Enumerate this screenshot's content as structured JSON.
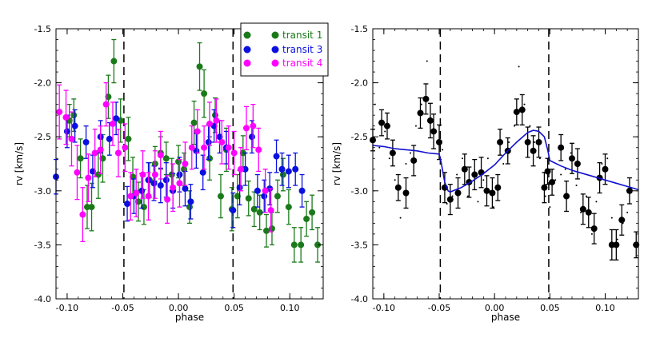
{
  "chart_data": [
    {
      "type": "scatter",
      "panel": "left",
      "xlabel": "phase",
      "ylabel": "rv [km/s]",
      "xlim": [
        -0.11,
        0.13
      ],
      "ylim": [
        -4.0,
        -1.5
      ],
      "xticks": [
        -0.1,
        -0.05,
        0.0,
        0.05,
        0.1
      ],
      "xtick_labels": [
        "-0.10",
        "-0.05",
        "0.00",
        "0.05",
        "0.10"
      ],
      "yticks": [
        -1.5,
        -2.0,
        -2.5,
        -3.0,
        -3.5,
        -4.0
      ],
      "ytick_labels": [
        "-1.5",
        "-2.0",
        "-2.5",
        "-3.0",
        "-3.5",
        "-4.0"
      ],
      "vlines": [
        -0.049,
        0.049
      ],
      "legend": {
        "position": "top-right",
        "entries": [
          "transit 1",
          "transit 3",
          "transit 4"
        ]
      },
      "series": [
        {
          "name": "transit 1",
          "color": "#1a7a1a",
          "x": [
            -0.098,
            -0.094,
            -0.088,
            -0.082,
            -0.078,
            -0.072,
            -0.068,
            -0.063,
            -0.058,
            -0.052,
            -0.045,
            -0.041,
            -0.036,
            -0.031,
            -0.026,
            -0.021,
            -0.016,
            -0.011,
            -0.006,
            0.0,
            0.005,
            0.01,
            0.014,
            0.019,
            0.023,
            0.028,
            0.033,
            0.038,
            0.043,
            0.048,
            0.053,
            0.058,
            0.063,
            0.068,
            0.073,
            0.079,
            0.084,
            0.089,
            0.094,
            0.099,
            0.104,
            0.11,
            0.115,
            0.12,
            0.125
          ],
          "y": [
            -2.35,
            -2.3,
            -2.7,
            -3.15,
            -3.15,
            -2.85,
            -2.7,
            -2.13,
            -1.8,
            -2.35,
            -2.52,
            -2.87,
            -3.1,
            -3.15,
            -2.9,
            -2.75,
            -2.65,
            -2.7,
            -2.85,
            -2.73,
            -2.8,
            -3.15,
            -2.37,
            -1.85,
            -2.1,
            -2.7,
            -2.3,
            -3.05,
            -2.62,
            -3.17,
            -3.05,
            -2.65,
            -3.07,
            -3.17,
            -3.2,
            -3.37,
            -3.35,
            -3.05,
            -2.85,
            -3.15,
            -3.5,
            -3.5,
            -3.26,
            -3.2,
            -3.5
          ],
          "err": [
            0.15,
            0.15,
            0.18,
            0.2,
            0.22,
            0.22,
            0.22,
            0.2,
            0.2,
            0.2,
            0.2,
            0.18,
            0.18,
            0.16,
            0.16,
            0.16,
            0.15,
            0.15,
            0.15,
            0.15,
            0.15,
            0.15,
            0.2,
            0.22,
            0.22,
            0.2,
            0.16,
            0.2,
            0.2,
            0.2,
            0.2,
            0.16,
            0.16,
            0.16,
            0.16,
            0.15,
            0.15,
            0.15,
            0.15,
            0.16,
            0.16,
            0.16,
            0.16,
            0.16,
            0.16
          ]
        },
        {
          "name": "transit 3",
          "color": "#0a10e0",
          "x": [
            -0.11,
            -0.1,
            -0.093,
            -0.083,
            -0.077,
            -0.07,
            -0.062,
            -0.056,
            -0.046,
            -0.04,
            -0.033,
            -0.027,
            -0.022,
            -0.016,
            -0.011,
            -0.005,
            0.001,
            0.006,
            0.011,
            0.016,
            0.022,
            0.027,
            0.032,
            0.037,
            0.043,
            0.049,
            0.055,
            0.06,
            0.066,
            0.071,
            0.077,
            0.082,
            0.088,
            0.093,
            0.099,
            0.105,
            0.111
          ],
          "y": [
            -2.87,
            -2.45,
            -2.4,
            -2.55,
            -2.82,
            -2.5,
            -2.52,
            -2.33,
            -3.12,
            -3.05,
            -3.0,
            -2.9,
            -2.93,
            -2.95,
            -2.9,
            -3.0,
            -2.85,
            -2.98,
            -3.1,
            -2.63,
            -2.83,
            -2.55,
            -2.4,
            -2.5,
            -2.6,
            -3.18,
            -2.97,
            -2.8,
            -2.5,
            -3.0,
            -3.05,
            -2.98,
            -2.68,
            -2.8,
            -2.82,
            -2.8,
            -3.0
          ],
          "err": [
            0.16,
            0.15,
            0.15,
            0.15,
            0.15,
            0.15,
            0.15,
            0.15,
            0.16,
            0.16,
            0.16,
            0.16,
            0.16,
            0.16,
            0.16,
            0.16,
            0.16,
            0.16,
            0.16,
            0.16,
            0.16,
            0.16,
            0.15,
            0.15,
            0.15,
            0.16,
            0.16,
            0.15,
            0.15,
            0.15,
            0.15,
            0.15,
            0.15,
            0.15,
            0.15,
            0.15,
            0.15
          ]
        },
        {
          "name": "transit 4",
          "color": "#ff00ff",
          "x": [
            -0.107,
            -0.101,
            -0.096,
            -0.091,
            -0.086,
            -0.081,
            -0.075,
            -0.07,
            -0.065,
            -0.059,
            -0.054,
            -0.048,
            -0.043,
            -0.038,
            -0.032,
            -0.027,
            -0.021,
            -0.016,
            -0.01,
            -0.005,
            0.001,
            0.006,
            0.012,
            0.017,
            0.023,
            0.028,
            0.034,
            0.039,
            0.045,
            0.05,
            0.056,
            0.061,
            0.067,
            0.072,
            0.078,
            0.083
          ],
          "y": [
            -2.27,
            -2.32,
            -2.52,
            -2.83,
            -3.22,
            -2.88,
            -2.65,
            -2.62,
            -2.2,
            -2.38,
            -2.65,
            -2.6,
            -3.05,
            -3.02,
            -2.85,
            -3.05,
            -2.85,
            -2.67,
            -3.08,
            -2.97,
            -2.93,
            -2.75,
            -2.6,
            -2.45,
            -2.6,
            -2.38,
            -2.35,
            -2.55,
            -2.6,
            -2.65,
            -2.8,
            -2.42,
            -2.4,
            -2.62,
            -3.0,
            -3.18
          ],
          "err": [
            0.25,
            0.25,
            0.25,
            0.25,
            0.25,
            0.22,
            0.22,
            0.22,
            0.2,
            0.2,
            0.22,
            0.22,
            0.22,
            0.22,
            0.22,
            0.22,
            0.22,
            0.22,
            0.22,
            0.22,
            0.22,
            0.2,
            0.2,
            0.2,
            0.2,
            0.2,
            0.2,
            0.2,
            0.2,
            0.2,
            0.2,
            0.2,
            0.2,
            0.2,
            0.2,
            0.2
          ]
        }
      ]
    },
    {
      "type": "scatter",
      "panel": "right",
      "xlabel": "phase",
      "ylabel": "rv [km/s]",
      "xlim": [
        -0.11,
        0.13
      ],
      "ylim": [
        -4.0,
        -1.5
      ],
      "xticks": [
        -0.1,
        -0.05,
        0.0,
        0.05,
        0.1
      ],
      "xtick_labels": [
        "-0.10",
        "-0.05",
        "0.00",
        "0.05",
        "0.10"
      ],
      "yticks": [
        -1.5,
        -2.0,
        -2.5,
        -3.0,
        -3.5,
        -4.0
      ],
      "ytick_labels": [
        "-1.5",
        "-2.0",
        "-2.5",
        "-3.0",
        "-3.5",
        "-4.0"
      ],
      "vlines": [
        -0.049,
        0.049
      ],
      "series": [
        {
          "name": "binned data",
          "color": "#000000",
          "x": [
            -0.11,
            -0.102,
            -0.097,
            -0.092,
            -0.087,
            -0.08,
            -0.073,
            -0.067,
            -0.062,
            -0.058,
            -0.055,
            -0.05,
            -0.045,
            -0.04,
            -0.033,
            -0.027,
            -0.023,
            -0.018,
            -0.012,
            -0.007,
            -0.002,
            0.003,
            0.005,
            0.012,
            0.02,
            0.025,
            0.03,
            0.035,
            0.04,
            0.045,
            0.048,
            0.052,
            0.06,
            0.065,
            0.07,
            0.075,
            0.08,
            0.085,
            0.09,
            0.095,
            0.1,
            0.106,
            0.11,
            0.115,
            0.122,
            0.128
          ],
          "y": [
            -2.53,
            -2.37,
            -2.4,
            -2.65,
            -2.97,
            -3.02,
            -2.72,
            -2.28,
            -2.15,
            -2.35,
            -2.45,
            -2.55,
            -2.97,
            -3.08,
            -3.02,
            -2.8,
            -2.92,
            -2.85,
            -2.83,
            -3.0,
            -3.02,
            -2.97,
            -2.55,
            -2.63,
            -2.27,
            -2.25,
            -2.55,
            -2.63,
            -2.55,
            -2.97,
            -2.82,
            -2.92,
            -2.6,
            -3.05,
            -2.7,
            -2.75,
            -3.17,
            -3.2,
            -3.35,
            -2.88,
            -2.8,
            -3.5,
            -3.5,
            -3.27,
            -3.0,
            -3.5
          ],
          "err": [
            0.1,
            0.12,
            0.12,
            0.12,
            0.12,
            0.14,
            0.14,
            0.14,
            0.14,
            0.16,
            0.16,
            0.16,
            0.14,
            0.14,
            0.14,
            0.14,
            0.14,
            0.14,
            0.14,
            0.14,
            0.14,
            0.12,
            0.12,
            0.12,
            0.12,
            0.14,
            0.14,
            0.14,
            0.14,
            0.14,
            0.12,
            0.12,
            0.12,
            0.14,
            0.14,
            0.14,
            0.14,
            0.14,
            0.14,
            0.14,
            0.14,
            0.14,
            0.14,
            0.14,
            0.12,
            0.12
          ]
        },
        {
          "name": "individual points",
          "color": "#000000",
          "x": [
            -0.108,
            -0.104,
            -0.099,
            -0.095,
            -0.09,
            -0.085,
            -0.08,
            -0.076,
            -0.071,
            -0.066,
            -0.061,
            -0.056,
            -0.052,
            -0.047,
            -0.043,
            -0.038,
            -0.034,
            -0.029,
            -0.024,
            -0.02,
            -0.015,
            -0.01,
            -0.006,
            -0.001,
            0.004,
            0.008,
            0.013,
            0.018,
            0.022,
            0.027,
            0.032,
            0.036,
            0.041,
            0.046,
            0.05,
            0.055,
            0.06,
            0.064,
            0.069,
            0.074,
            0.078,
            0.083,
            0.088,
            0.092,
            0.097,
            0.102,
            0.106,
            0.111,
            0.116,
            0.12
          ],
          "y": [
            -2.2,
            -2.6,
            -2.45,
            -2.7,
            -2.9,
            -3.25,
            -2.75,
            -2.65,
            -2.4,
            -2.2,
            -1.8,
            -2.45,
            -2.55,
            -2.62,
            -3.12,
            -3.05,
            -2.85,
            -2.7,
            -3.05,
            -2.85,
            -3.1,
            -2.9,
            -2.7,
            -3.15,
            -2.95,
            -2.75,
            -2.55,
            -2.4,
            -1.85,
            -2.2,
            -2.4,
            -2.55,
            -2.7,
            -3.05,
            -3.15,
            -2.9,
            -2.85,
            -2.8,
            -2.65,
            -2.95,
            -3.2,
            -3.05,
            -3.4,
            -3.1,
            -2.75,
            -2.7,
            -3.25,
            -3.45,
            -3.3,
            -3.2
          ]
        },
        {
          "name": "model",
          "type": "line",
          "color": "#1010d0",
          "x": [
            -0.11,
            -0.1,
            -0.09,
            -0.08,
            -0.07,
            -0.06,
            -0.05,
            -0.048,
            -0.045,
            -0.042,
            -0.04,
            -0.035,
            -0.03,
            -0.02,
            -0.01,
            0.0,
            0.01,
            0.02,
            0.03,
            0.035,
            0.04,
            0.045,
            0.048,
            0.05,
            0.06,
            0.07,
            0.08,
            0.09,
            0.1,
            0.11,
            0.12,
            0.13
          ],
          "y": [
            -2.58,
            -2.59,
            -2.61,
            -2.62,
            -2.63,
            -2.65,
            -2.66,
            -2.75,
            -2.92,
            -3.0,
            -3.01,
            -2.99,
            -2.97,
            -2.91,
            -2.84,
            -2.76,
            -2.65,
            -2.55,
            -2.46,
            -2.44,
            -2.45,
            -2.5,
            -2.62,
            -2.72,
            -2.77,
            -2.81,
            -2.84,
            -2.87,
            -2.9,
            -2.93,
            -2.96,
            -2.99
          ]
        }
      ]
    }
  ]
}
